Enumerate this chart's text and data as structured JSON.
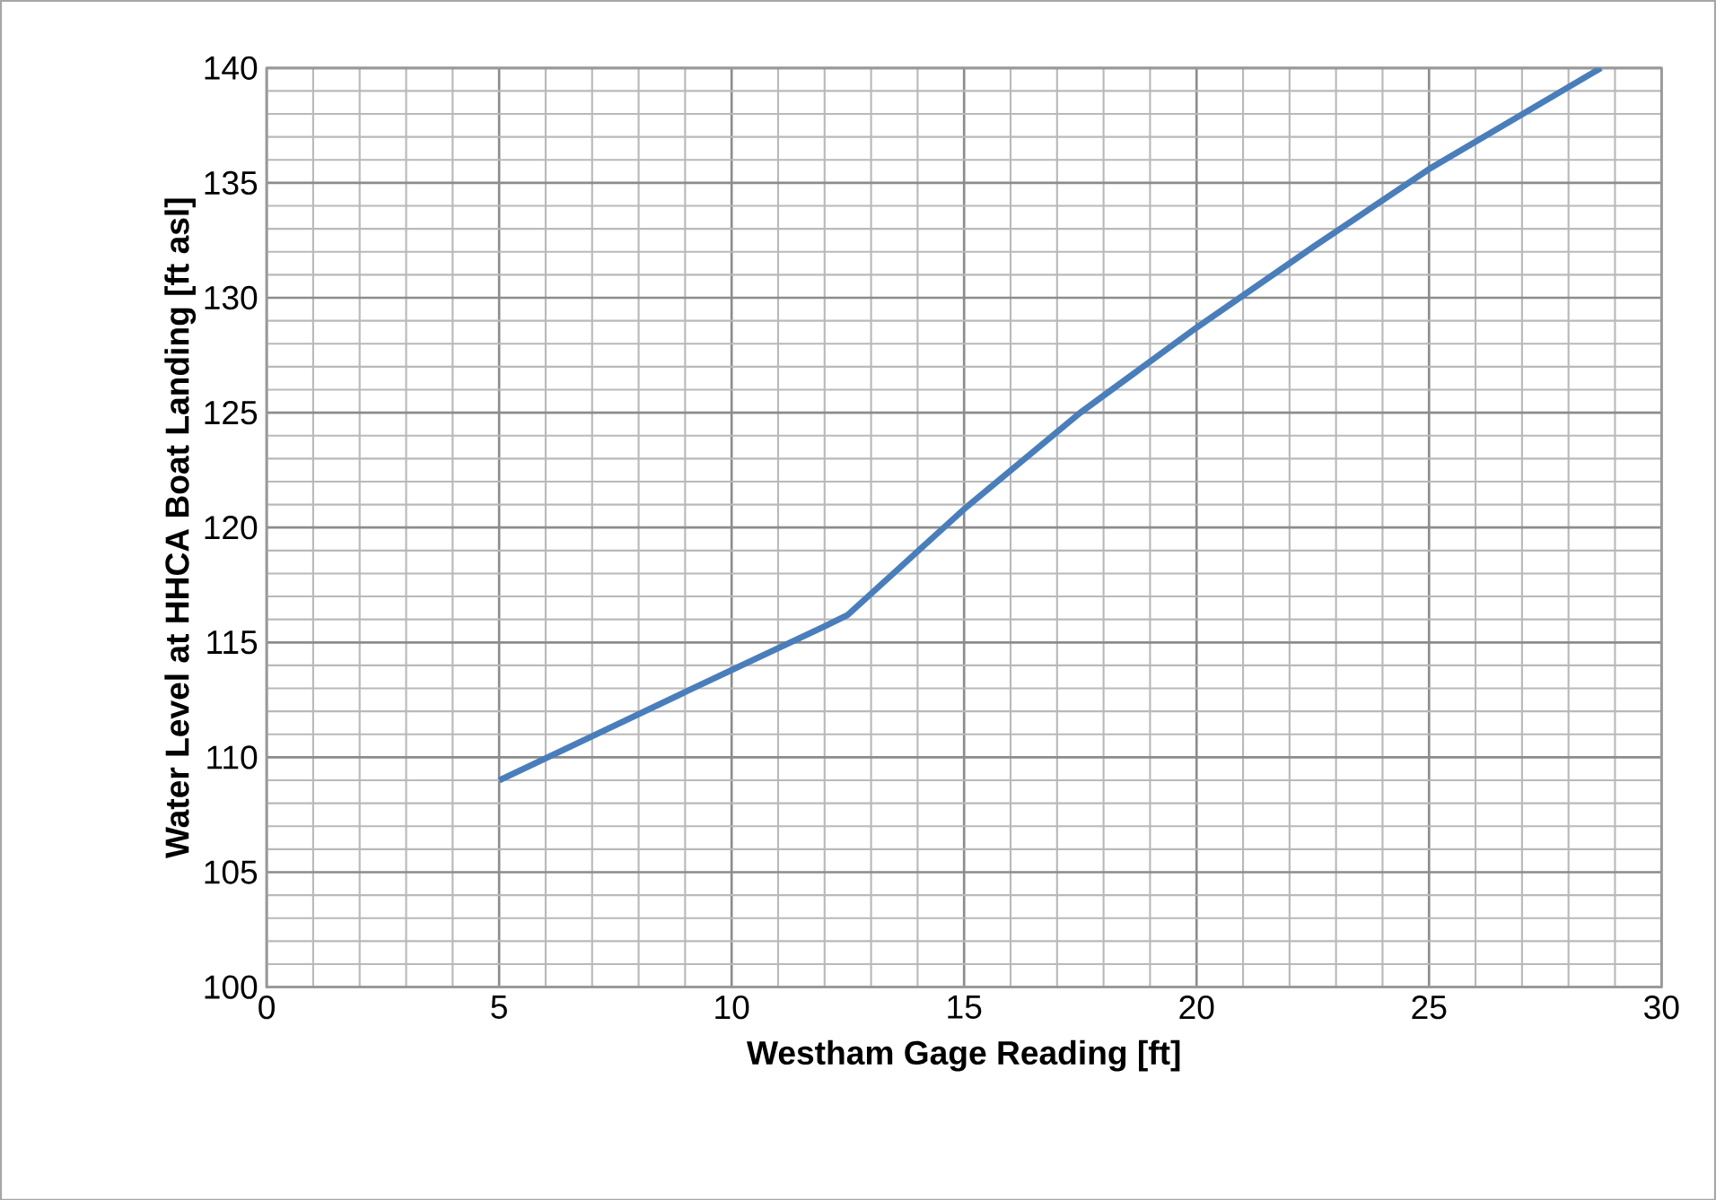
{
  "chart_data": {
    "type": "line",
    "xlabel": "Westham Gage Reading [ft]",
    "ylabel": "Water Level at HHCA Boat Landing [ft asl]",
    "xlim": [
      0,
      30
    ],
    "xticks": [
      0,
      5,
      10,
      15,
      20,
      25,
      30
    ],
    "ylim": [
      100,
      140
    ],
    "yticks": [
      100,
      105,
      110,
      115,
      120,
      125,
      130,
      135,
      140
    ],
    "grid": true,
    "marker": "none",
    "line_style": "solid",
    "series": [
      {
        "color": "#4a7ebb",
        "x": [
          5,
          7.5,
          10,
          12,
          12.5,
          15,
          17.5,
          20,
          22.5,
          25,
          28.7
        ],
        "values": [
          109,
          111.4,
          113.8,
          115.7,
          116.2,
          120.8,
          125,
          128.7,
          132.2,
          135.6,
          140
        ]
      }
    ]
  }
}
